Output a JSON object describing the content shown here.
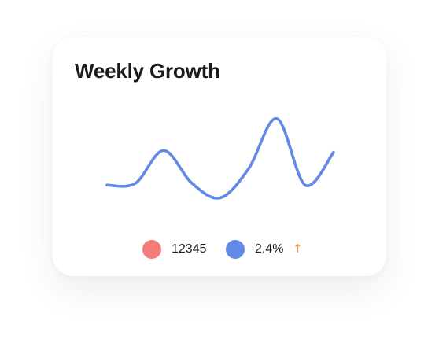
{
  "card": {
    "title": "Weekly Growth"
  },
  "legend": {
    "items": [
      {
        "value": "12345",
        "color": "#f57b7b"
      },
      {
        "value": "2.4%",
        "color": "#6389e6",
        "trend_icon": "arrow-up-icon",
        "trend_symbol": "↑",
        "trend_color": "#f0903a"
      }
    ]
  },
  "chart_data": {
    "type": "line",
    "series": [
      {
        "color": "#6389e6",
        "values": [
          12,
          14,
          50,
          14,
          -2,
          30,
          85,
          12,
          48
        ]
      }
    ]
  }
}
